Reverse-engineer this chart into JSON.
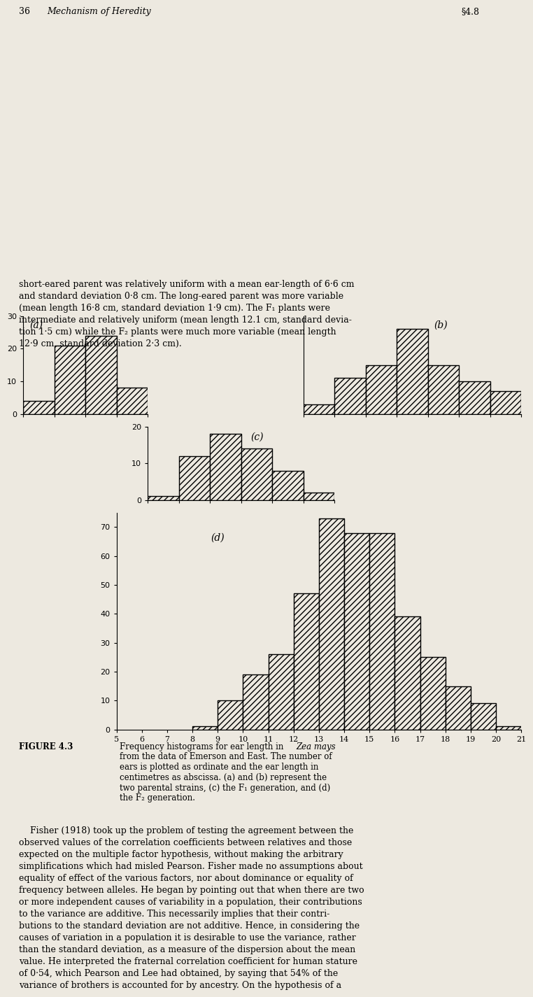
{
  "background_color": "#ede9e0",
  "x_min": 5,
  "x_max": 21,
  "x_ticks": [
    5,
    6,
    7,
    8,
    9,
    10,
    11,
    12,
    13,
    14,
    15,
    16,
    17,
    18,
    19,
    20,
    21
  ],
  "subplot_a": {
    "label": "(a)",
    "bins": [
      5,
      6,
      7,
      8,
      9
    ],
    "values": [
      4,
      21,
      24,
      8
    ],
    "ylim": [
      0,
      30
    ],
    "yticks": [
      0,
      10,
      20,
      30
    ]
  },
  "subplot_b": {
    "label": "(b)",
    "bins": [
      14,
      15,
      16,
      17,
      18,
      19,
      20,
      21
    ],
    "values": [
      3,
      11,
      15,
      26,
      15,
      10,
      7
    ],
    "ylim": [
      0,
      30
    ],
    "yticks": [
      0,
      10,
      20,
      30
    ]
  },
  "subplot_c": {
    "label": "(c)",
    "bins": [
      9,
      10,
      11,
      12,
      13,
      14,
      15
    ],
    "values": [
      1,
      12,
      18,
      14,
      8,
      2
    ],
    "ylim": [
      0,
      20
    ],
    "yticks": [
      0,
      10,
      20
    ]
  },
  "subplot_d": {
    "label": "(d)",
    "bins": [
      8,
      9,
      10,
      11,
      12,
      13,
      14,
      15,
      16,
      17,
      18,
      19,
      20,
      21
    ],
    "values": [
      1,
      10,
      19,
      26,
      47,
      73,
      68,
      68,
      39,
      25,
      15,
      9,
      1
    ],
    "ylim": [
      0,
      75
    ],
    "yticks": [
      0,
      10,
      20,
      30,
      40,
      50,
      60,
      70
    ]
  },
  "header_page": "36",
  "header_title": "Mechanism of Heredity",
  "header_section": "§4.8",
  "body_text_top": "short-eared parent was relatively uniform with a mean ear-length of 6·6 cm\nand standard deviation 0·8 cm. The long-eared parent was more variable\n(mean length 16·8 cm, standard deviation 1·9 cm). The F₁ plants were\nintermediate and relatively uniform (mean length 12.1 cm, standard devia-\ntion 1·5 cm) while the F₂ plants were much more variable (mean length\n12·9 cm, standard deviation 2·3 cm).",
  "caption_label": "FIGURE 4.3",
  "caption_text_1": "Frequency histograms for ear length in ",
  "caption_italic": "Zea mays",
  "caption_lines": [
    "from the data of Emerson and East. The number of",
    "ears is plotted as ordinate and the ear length in",
    "centimetres as abscissa. (a) and (b) represent the",
    "two parental strains, (c) the F₁ generation, and (d)",
    "the F₂ generation."
  ],
  "fisher_text": "    Fisher (1918) took up the problem of testing the agreement between the\nobserved values of the correlation coefficients between relatives and those\nexpected on the multiple factor hypothesis, without making the arbitrary\nsimplifications which had misled Pearson. Fisher made no assumptions about\nequality of effect of the various factors, nor about dominance or equality of\nfrequency between alleles. He began by pointing out that when there are two\nor more independent causes of variability in a population, their contributions\nto the variance are additive. This necessarily implies that their contri-\nbutions to the standard deviation are not additive. Hence, in considering the\ncauses of variation in a population it is desirable to use the variance, rather\nthan the standard deviation, as a measure of the dispersion about the mean\nvalue. He interpreted the fraternal correlation coefficient for human stature\nof 0·54, which Pearson and Lee had obtained, by saying that 54% of the\nvariance of brothers is accounted for by ancestry. On the hypothesis of a"
}
